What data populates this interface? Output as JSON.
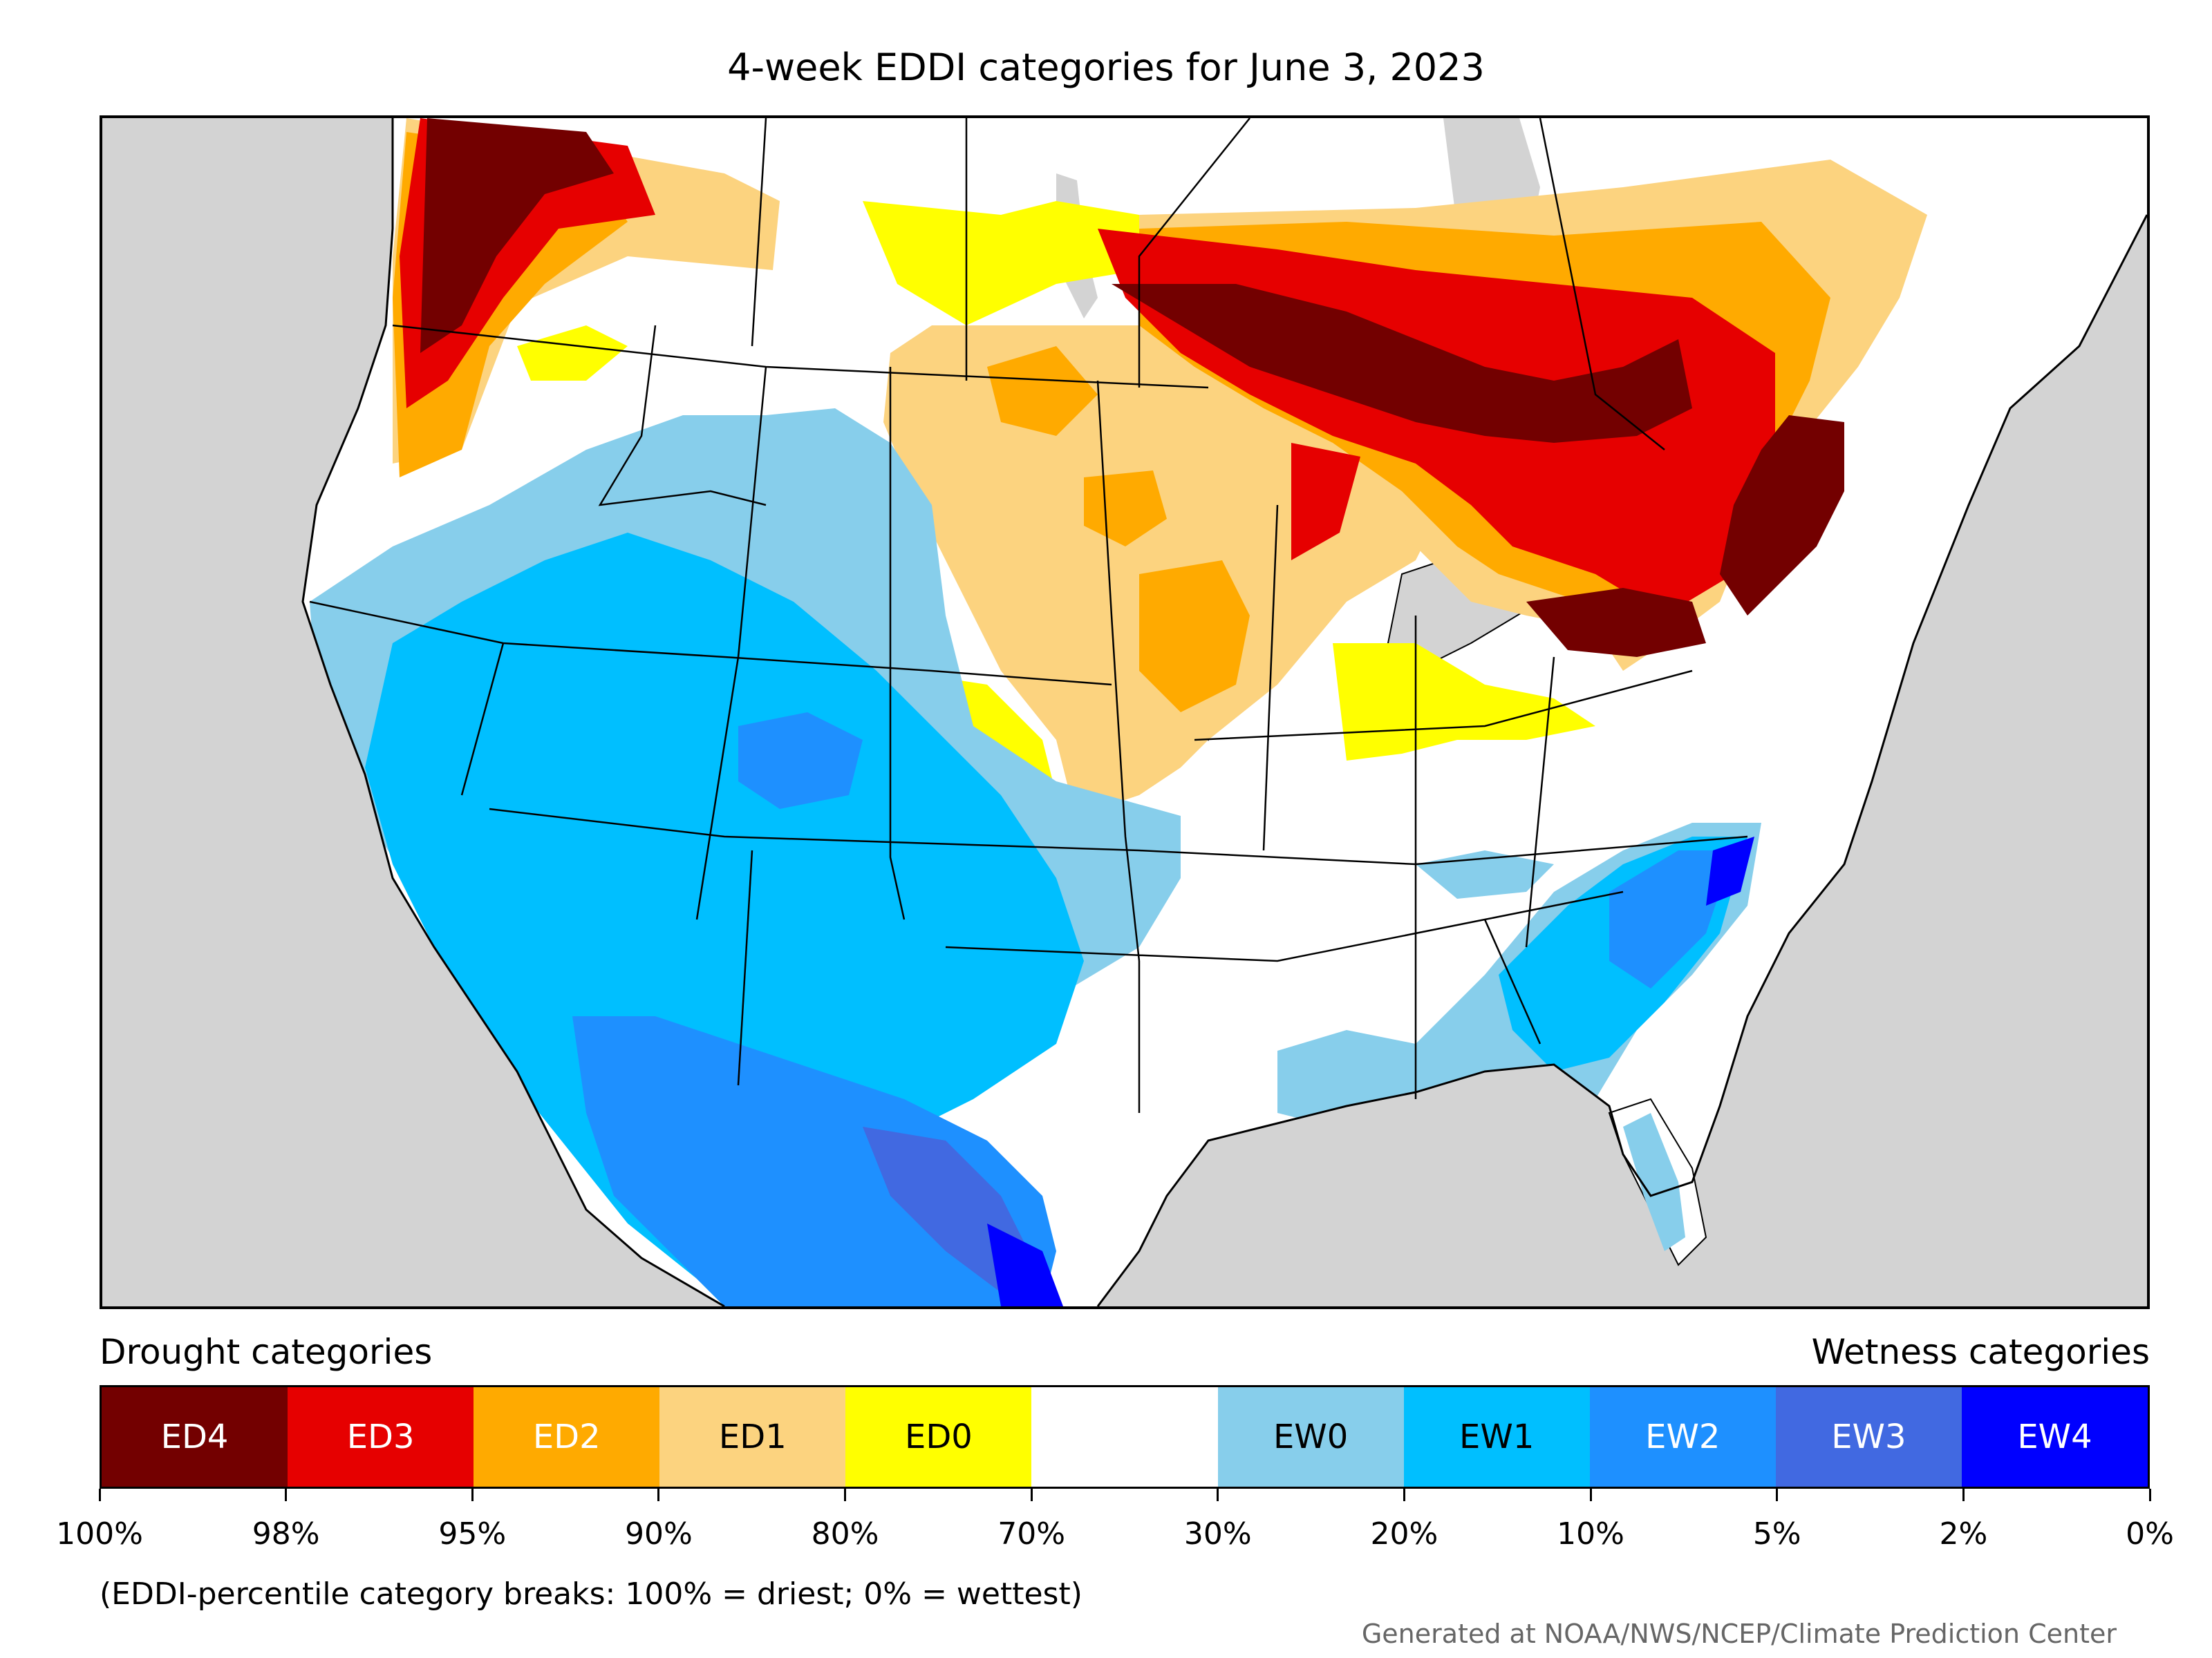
{
  "title": "4-week EDDI categories for June 3, 2023",
  "legend": {
    "drought_label": "Drought categories",
    "wetness_label": "Wetness categories",
    "categories": [
      {
        "label": "ED4",
        "color": "#730000",
        "text_color": "#ffffff"
      },
      {
        "label": "ED3",
        "color": "#e60000",
        "text_color": "#ffffff"
      },
      {
        "label": "ED2",
        "color": "#ffaa00",
        "text_color": "#ffffff"
      },
      {
        "label": "ED1",
        "color": "#fcd37f",
        "text_color": "#000000"
      },
      {
        "label": "ED0",
        "color": "#ffff00",
        "text_color": "#000000"
      },
      {
        "label": "",
        "color": "#ffffff",
        "text_color": "#000000"
      },
      {
        "label": "EW0",
        "color": "#87ceeb",
        "text_color": "#000000"
      },
      {
        "label": "EW1",
        "color": "#00bfff",
        "text_color": "#000000"
      },
      {
        "label": "EW2",
        "color": "#1e90ff",
        "text_color": "#ffffff"
      },
      {
        "label": "EW3",
        "color": "#4169e1",
        "text_color": "#ffffff"
      },
      {
        "label": "EW4",
        "color": "#0000ff",
        "text_color": "#ffffff"
      }
    ],
    "tick_labels": [
      "100%",
      "98%",
      "95%",
      "90%",
      "80%",
      "70%",
      "30%",
      "20%",
      "10%",
      "5%",
      "2%",
      "0%"
    ]
  },
  "note": "(EDDI-percentile category breaks: 100% = driest; 0% = wettest)",
  "credit": "Generated at NOAA/NWS/NCEP/Climate Prediction Center",
  "map": {
    "background_color": "#d3d3d3",
    "land_color": "#ffffff",
    "border_color": "#000000"
  }
}
